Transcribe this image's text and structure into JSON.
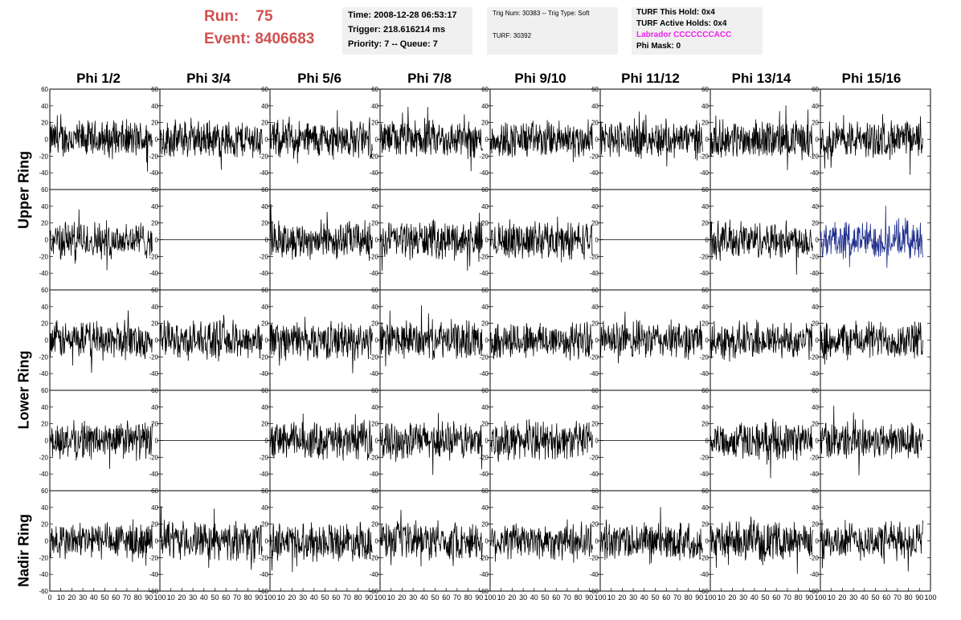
{
  "run_label": "Run:",
  "run_value": "75",
  "event_label": "Event:",
  "event_value": "8406683",
  "info_box_1": {
    "time": "Time: 2008-12-28 06:53:17",
    "trigger": "Trigger: 218.616214 ms",
    "priority": "Priority: 7 -- Queue: 7"
  },
  "info_box_2": {
    "trig": "Trig Num: 30383 -- Trig Type: Soft",
    "turf": "TURF: 30392"
  },
  "info_box_3": {
    "this_hold": "TURF This Hold: 0x4",
    "active_holds": "TURF Active Holds: 0x4",
    "labrador": "Labrador CCCCCCCACC",
    "phi_mask": "Phi Mask: 0"
  },
  "colors": {
    "run_text": "#d05050",
    "labrador_text": "#ee22ee",
    "trace": "#000000",
    "highlight_trace": "#1a2a8a",
    "info_bg": "#f0f0f0"
  },
  "chart_data": {
    "type": "line",
    "columns": [
      "Phi 1/2",
      "Phi 3/4",
      "Phi 5/6",
      "Phi 7/8",
      "Phi 9/10",
      "Phi 11/12",
      "Phi 13/14",
      "Phi 15/16"
    ],
    "row_labels": [
      "Upper Ring",
      "Lower Ring",
      "Nadir Ring"
    ],
    "panel_rows": 5,
    "ylim": [
      -60,
      60
    ],
    "yticks": [
      "60",
      "40",
      "20",
      "0",
      "-20",
      "-40",
      "-60"
    ],
    "xlim": [
      0,
      100
    ],
    "xticks": [
      "0",
      "10",
      "20",
      "30",
      "40",
      "50",
      "60",
      "70",
      "80",
      "90",
      "100"
    ],
    "flat_panels": [
      [
        1,
        1
      ],
      [
        1,
        5
      ],
      [
        3,
        1
      ],
      [
        3,
        5
      ]
    ],
    "highlight_panel": [
      1,
      7
    ],
    "amplitude": 20
  }
}
